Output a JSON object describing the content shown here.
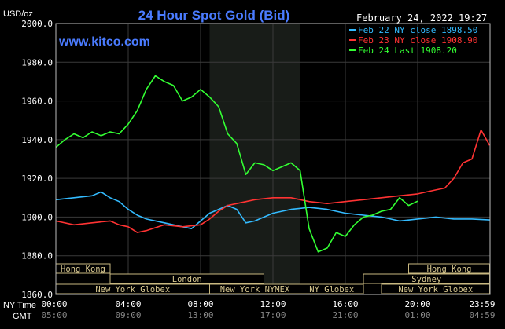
{
  "header": {
    "title": "24 Hour Spot Gold (Bid)",
    "date": "February 24, 2022 19:27",
    "watermark": "www.kitco.com",
    "unit": "USD/oz"
  },
  "legend": [
    {
      "text": "Feb 22 NY close 1898.50",
      "color": "#33bbff"
    },
    {
      "text": "Feb 23 NY close 1908.90",
      "color": "#ff3333"
    },
    {
      "text": "Feb 24 Last 1908.20",
      "color": "#33ff33"
    }
  ],
  "axis_labels": {
    "ny_time": "NY Time",
    "gmt": "GMT"
  },
  "markets": [
    {
      "name": "Hong Kong",
      "start": 0,
      "end": 3.0,
      "row": 0
    },
    {
      "name": "London",
      "start": 3.0,
      "end": 11.5,
      "row": 1
    },
    {
      "name": "New York Globex",
      "start": 0,
      "end": 8.5,
      "row": 2
    },
    {
      "name": "New York NYMEX",
      "start": 8.5,
      "end": 13.5,
      "row": 2
    },
    {
      "name": "NY Globex",
      "start": 13.5,
      "end": 17.0,
      "row": 2
    },
    {
      "name": "Sydney",
      "start": 17.0,
      "end": 23.98,
      "row": 1
    },
    {
      "name": "Hong Kong",
      "start": 19.5,
      "end": 23.98,
      "row": 0
    },
    {
      "name": "New York Globex",
      "start": 18.0,
      "end": 23.98,
      "row": 2
    }
  ],
  "chart_data": {
    "type": "line",
    "title": "24 Hour Spot Gold (Bid)",
    "ylabel": "USD/oz",
    "ylim": [
      1860,
      2000
    ],
    "xlim": [
      0,
      24
    ],
    "yticks": [
      "1860.0",
      "1880.0",
      "1900.0",
      "1920.0",
      "1940.0",
      "1960.0",
      "1980.0",
      "2000.0"
    ],
    "xticks_ny": [
      "00:00",
      "04:00",
      "08:00",
      "12:00",
      "16:00",
      "20:00",
      "23:59"
    ],
    "xticks_gmt": [
      "05:00",
      "09:00",
      "13:00",
      "17:00",
      "21:00",
      "01:00",
      "04:59"
    ],
    "shaded_range": [
      8.5,
      13.5
    ],
    "series": [
      {
        "name": "Feb 22 NY close 1898.50",
        "color": "#33bbff",
        "x": [
          0,
          1,
          2,
          2.5,
          3,
          3.5,
          4,
          4.5,
          5,
          6,
          7,
          7.5,
          8,
          8.5,
          9,
          9.5,
          10,
          10.5,
          11,
          12,
          13,
          14,
          15,
          16,
          17,
          18,
          19,
          20,
          21,
          22,
          23,
          23.98
        ],
        "values": [
          1909,
          1910,
          1911,
          1913,
          1910,
          1908,
          1904,
          1901,
          1899,
          1897,
          1895,
          1894,
          1898,
          1902,
          1904,
          1906,
          1904,
          1897,
          1898,
          1902,
          1904,
          1905,
          1904,
          1902,
          1901,
          1900,
          1898,
          1899,
          1900,
          1899,
          1899,
          1898.5
        ]
      },
      {
        "name": "Feb 23 NY close 1908.90",
        "color": "#ff3333",
        "x": [
          0,
          1,
          2,
          3,
          3.5,
          4,
          4.5,
          5,
          6,
          7,
          8,
          8.5,
          9,
          9.5,
          10,
          11,
          12,
          13,
          14,
          15,
          16,
          17,
          18,
          19,
          20,
          20.5,
          21,
          21.5,
          22,
          22.5,
          23,
          23.5,
          23.98
        ],
        "values": [
          1898,
          1896,
          1897,
          1898,
          1896,
          1895,
          1892,
          1893,
          1896,
          1895,
          1896,
          1899,
          1903,
          1906,
          1907,
          1909,
          1910,
          1910,
          1908,
          1907,
          1908,
          1909,
          1910,
          1911,
          1912,
          1913,
          1914,
          1915,
          1920,
          1928,
          1930,
          1945,
          1937
        ]
      },
      {
        "name": "Feb 24 Last 1908.20",
        "color": "#33ff33",
        "x": [
          0,
          0.5,
          1,
          1.5,
          2,
          2.5,
          3,
          3.5,
          4,
          4.5,
          5,
          5.5,
          6,
          6.5,
          7,
          7.5,
          8,
          8.5,
          9,
          9.5,
          10,
          10.5,
          11,
          11.5,
          12,
          12.5,
          13,
          13.5,
          14,
          14.5,
          15,
          15.5,
          16,
          16.5,
          17,
          17.5,
          18,
          18.5,
          19,
          19.5,
          20
        ],
        "values": [
          1936,
          1940,
          1943,
          1941,
          1944,
          1942,
          1944,
          1943,
          1948,
          1955,
          1966,
          1973,
          1970,
          1968,
          1960,
          1962,
          1966,
          1962,
          1957,
          1943,
          1938,
          1922,
          1928,
          1927,
          1924,
          1926,
          1928,
          1924,
          1894,
          1882,
          1884,
          1892,
          1890,
          1896,
          1900,
          1901,
          1903,
          1904,
          1910,
          1906,
          1908.2
        ]
      }
    ]
  }
}
